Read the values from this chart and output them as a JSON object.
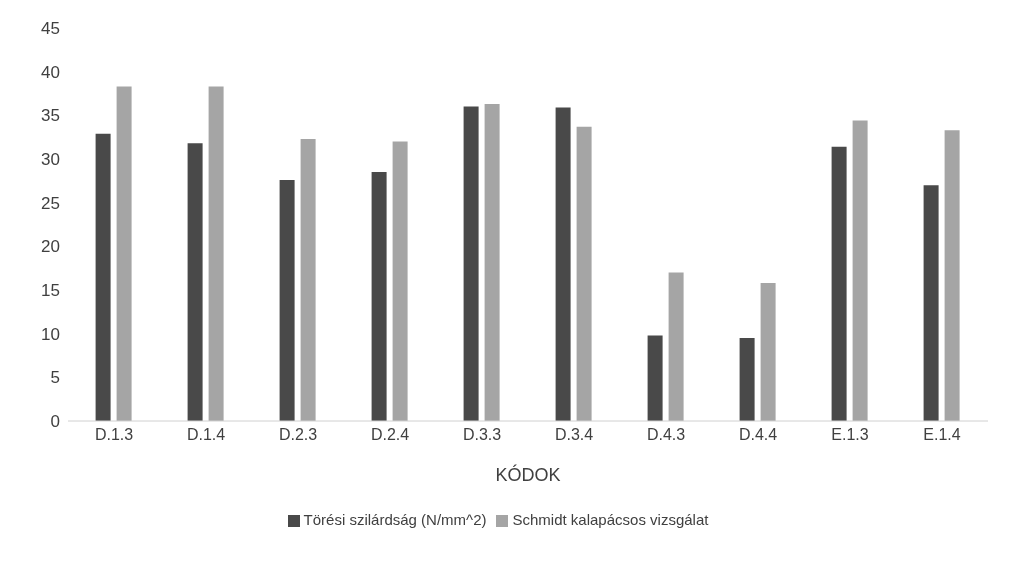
{
  "chart_data": {
    "type": "bar",
    "xlabel": "KÓDOK",
    "categories": [
      "D.1.3",
      "D.1.4",
      "D.2.3",
      "D.2.4",
      "D.3.3",
      "D.3.4",
      "D.4.3",
      "D.4.4",
      "E.1.3",
      "E.1.4"
    ],
    "series": [
      {
        "name": "Törési szilárdság (N/mm^2)",
        "color": "#494949",
        "values": [
          32.9,
          31.8,
          27.6,
          28.5,
          36.0,
          35.9,
          9.8,
          9.5,
          31.4,
          27.0
        ]
      },
      {
        "name": "Schmidt kalapácsos vizsgálat",
        "color": "#a5a5a5",
        "values": [
          38.3,
          38.3,
          32.3,
          32.0,
          36.3,
          33.7,
          17.0,
          15.8,
          34.4,
          33.3
        ]
      }
    ],
    "ylim": [
      0,
      45
    ],
    "yticks": [
      0,
      5,
      10,
      15,
      20,
      25,
      30,
      35,
      40,
      45
    ],
    "grid": false,
    "legend": "bottom"
  }
}
